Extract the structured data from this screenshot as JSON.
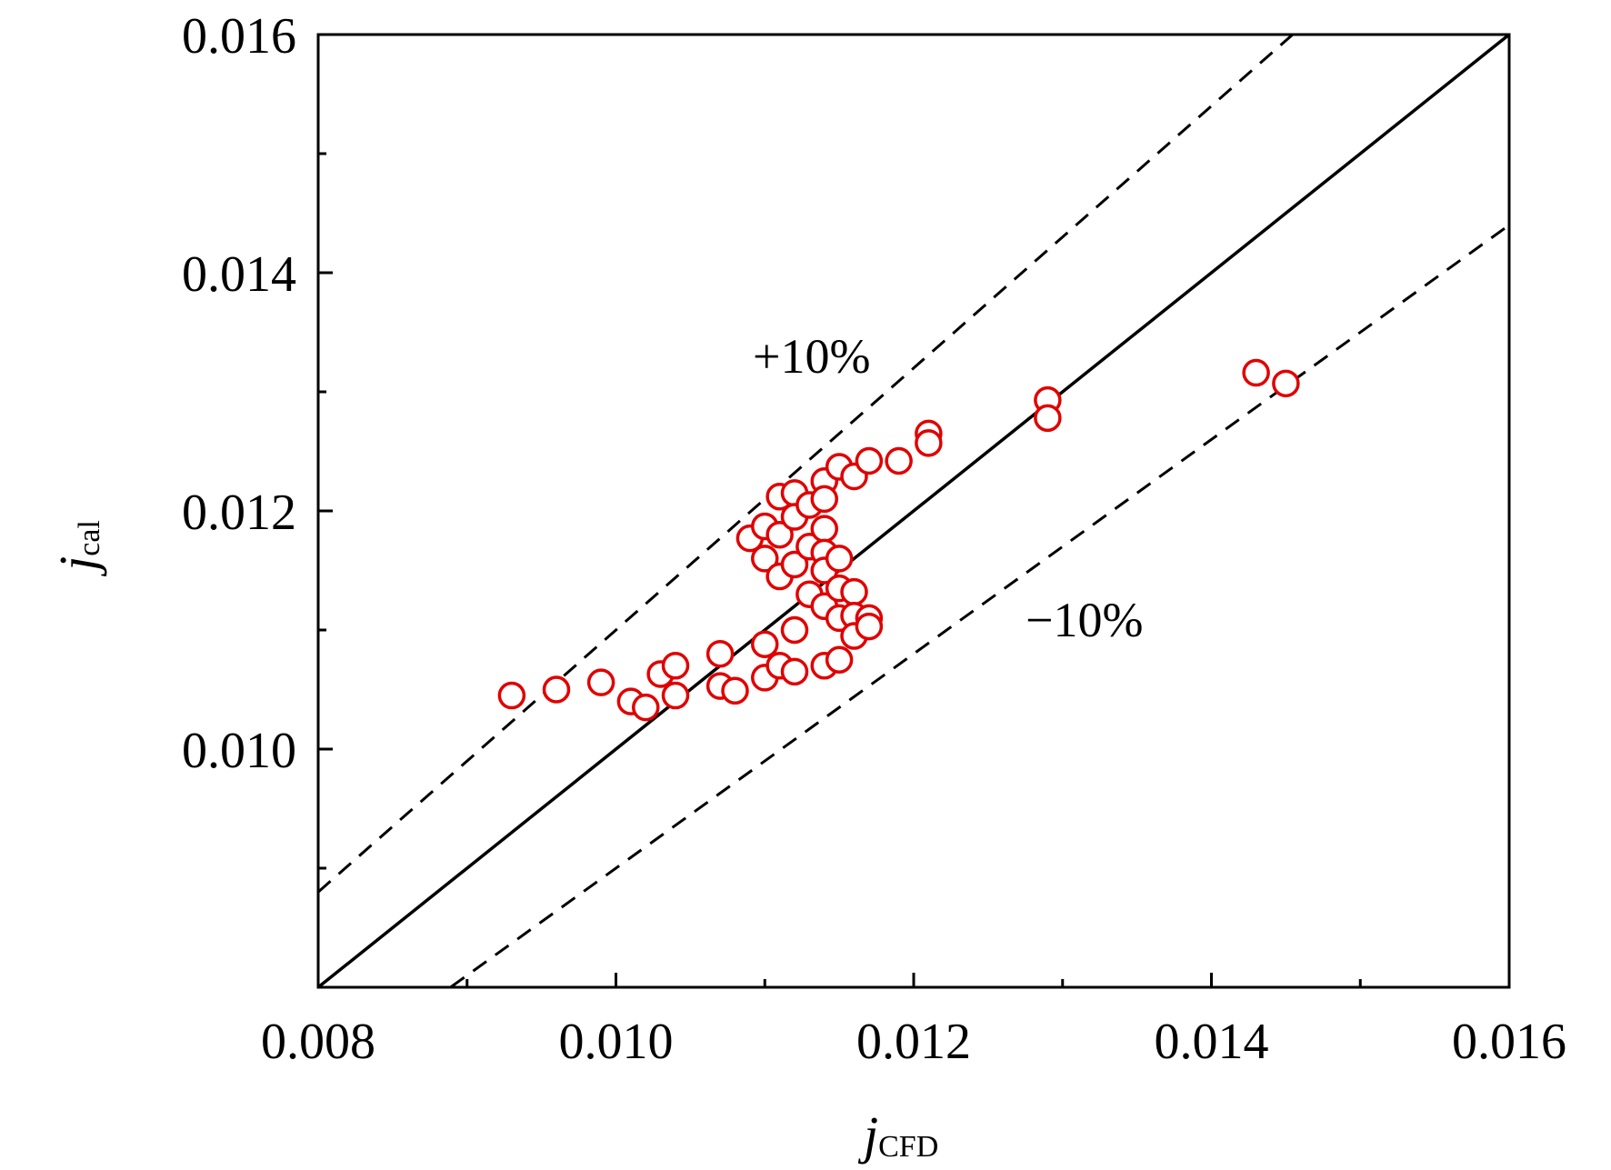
{
  "chart_data": {
    "type": "scatter",
    "title": "",
    "xlabel": {
      "main": "j",
      "sub": "CFD"
    },
    "ylabel": {
      "main": "j",
      "sub": "cal"
    },
    "xlim": [
      0.008,
      0.016
    ],
    "ylim": [
      0.008,
      0.016
    ],
    "xticks": [
      0.008,
      0.01,
      0.012,
      0.014,
      0.016
    ],
    "xtick_labels": [
      "0.008",
      "0.010",
      "0.012",
      "0.014",
      "0.016"
    ],
    "yticks": [
      0.01,
      0.012,
      0.014,
      0.016
    ],
    "ytick_labels": [
      "0.010",
      "0.012",
      "0.014",
      "0.016"
    ],
    "minor_tick_step": 0.001,
    "grid": false,
    "legend": "none",
    "marker_color": "#e00000",
    "reference_lines": [
      {
        "label": "",
        "factor": 1.0,
        "style": "solid"
      },
      {
        "label": "+10%",
        "factor": 1.1,
        "style": "dashed"
      },
      {
        "label": "−10%",
        "factor": 0.9,
        "style": "dashed"
      }
    ],
    "points": [
      [
        0.0093,
        0.01045
      ],
      [
        0.0096,
        0.0105
      ],
      [
        0.0099,
        0.01056
      ],
      [
        0.0101,
        0.0104
      ],
      [
        0.0102,
        0.01035
      ],
      [
        0.0103,
        0.01063
      ],
      [
        0.0104,
        0.0107
      ],
      [
        0.0104,
        0.01045
      ],
      [
        0.0107,
        0.0108
      ],
      [
        0.0107,
        0.01053
      ],
      [
        0.0108,
        0.01049
      ],
      [
        0.0109,
        0.01177
      ],
      [
        0.011,
        0.01187
      ],
      [
        0.011,
        0.0116
      ],
      [
        0.011,
        0.01088
      ],
      [
        0.011,
        0.0106
      ],
      [
        0.0111,
        0.01212
      ],
      [
        0.0111,
        0.0118
      ],
      [
        0.0111,
        0.01145
      ],
      [
        0.0111,
        0.0107
      ],
      [
        0.0112,
        0.01215
      ],
      [
        0.0112,
        0.01195
      ],
      [
        0.0112,
        0.01155
      ],
      [
        0.0112,
        0.011
      ],
      [
        0.0112,
        0.01065
      ],
      [
        0.0113,
        0.01205
      ],
      [
        0.0113,
        0.0117
      ],
      [
        0.0113,
        0.0113
      ],
      [
        0.0114,
        0.01225
      ],
      [
        0.0114,
        0.0121
      ],
      [
        0.0114,
        0.01185
      ],
      [
        0.0114,
        0.01165
      ],
      [
        0.0114,
        0.0115
      ],
      [
        0.0114,
        0.0112
      ],
      [
        0.0114,
        0.0107
      ],
      [
        0.0115,
        0.01237
      ],
      [
        0.0115,
        0.0116
      ],
      [
        0.0115,
        0.01135
      ],
      [
        0.0115,
        0.0111
      ],
      [
        0.0115,
        0.01075
      ],
      [
        0.0116,
        0.01229
      ],
      [
        0.0116,
        0.01132
      ],
      [
        0.0116,
        0.01112
      ],
      [
        0.0116,
        0.01095
      ],
      [
        0.0117,
        0.01242
      ],
      [
        0.0117,
        0.0111
      ],
      [
        0.0117,
        0.01103
      ],
      [
        0.0119,
        0.01242
      ],
      [
        0.0121,
        0.01265
      ],
      [
        0.0121,
        0.01257
      ],
      [
        0.0129,
        0.01293
      ],
      [
        0.0129,
        0.01278
      ],
      [
        0.0143,
        0.01316
      ],
      [
        0.0145,
        0.01307
      ]
    ]
  }
}
